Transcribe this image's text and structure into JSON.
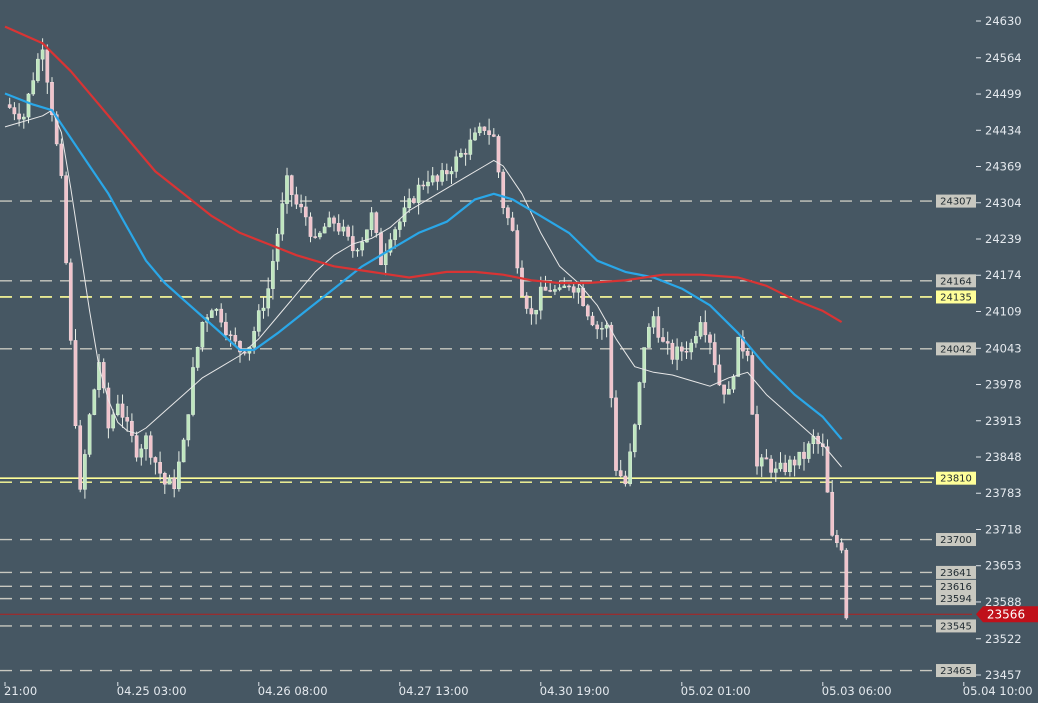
{
  "chart_data": {
    "type": "candlestick",
    "title": "",
    "xlabel": "",
    "ylabel": "",
    "ylim": [
      23440,
      24650
    ],
    "y_ticks": [
      24630,
      24564,
      24499,
      24434,
      24369,
      24304,
      24239,
      24174,
      24109,
      24043,
      23978,
      23913,
      23848,
      23783,
      23718,
      23653,
      23588,
      23522,
      23457
    ],
    "x_ticks": [
      {
        "label": "21:00",
        "index": 0
      },
      {
        "label": "04.25 03:00",
        "index": 24
      },
      {
        "label": "04.26 08:00",
        "index": 54
      },
      {
        "label": "04.27 13:00",
        "index": 84
      },
      {
        "label": "04.30 19:00",
        "index": 114
      },
      {
        "label": "05.02 01:00",
        "index": 144
      },
      {
        "label": "05.03 06:00",
        "index": 174
      },
      {
        "label": "05.04 10:00",
        "index": 204
      }
    ],
    "current_price": 23566,
    "levels": [
      {
        "value": 24307,
        "style": "dashed",
        "color": "#c8c8c0"
      },
      {
        "value": 24164,
        "style": "dashed",
        "color": "#c8c8c0"
      },
      {
        "value": 24135,
        "style": "dashed",
        "color": "#ffff99"
      },
      {
        "value": 24042,
        "style": "dashed",
        "color": "#c8c8c0"
      },
      {
        "value": 23810,
        "style": "solid",
        "color": "#ffff99"
      },
      {
        "value": 23700,
        "style": "dashed",
        "color": "#c8c8c0"
      },
      {
        "value": 23641,
        "style": "dashed",
        "color": "#c8c8c0"
      },
      {
        "value": 23616,
        "style": "dashed",
        "color": "#c8c8c0"
      },
      {
        "value": 23594,
        "style": "dashed",
        "color": "#c8c8c0"
      },
      {
        "value": 23545,
        "style": "dashed",
        "color": "#c8c8c0"
      },
      {
        "value": 23465,
        "style": "dashed",
        "color": "#c8c8c0"
      }
    ],
    "close_path": [
      [
        0,
        24480
      ],
      [
        4,
        24460
      ],
      [
        6,
        24530
      ],
      [
        8,
        24590
      ],
      [
        10,
        24470
      ],
      [
        12,
        24340
      ],
      [
        14,
        24050
      ],
      [
        16,
        23780
      ],
      [
        18,
        23920
      ],
      [
        20,
        24020
      ],
      [
        22,
        23900
      ],
      [
        24,
        23950
      ],
      [
        26,
        23900
      ],
      [
        28,
        23860
      ],
      [
        30,
        23880
      ],
      [
        32,
        23840
      ],
      [
        34,
        23800
      ],
      [
        36,
        23800
      ],
      [
        38,
        23870
      ],
      [
        40,
        24000
      ],
      [
        42,
        24090
      ],
      [
        44,
        24120
      ],
      [
        46,
        24100
      ],
      [
        48,
        24060
      ],
      [
        50,
        24040
      ],
      [
        52,
        24050
      ],
      [
        54,
        24100
      ],
      [
        56,
        24150
      ],
      [
        58,
        24250
      ],
      [
        60,
        24340
      ],
      [
        62,
        24300
      ],
      [
        64,
        24280
      ],
      [
        66,
        24230
      ],
      [
        68,
        24260
      ],
      [
        70,
        24270
      ],
      [
        72,
        24250
      ],
      [
        74,
        24220
      ],
      [
        76,
        24240
      ],
      [
        78,
        24280
      ],
      [
        80,
        24200
      ],
      [
        82,
        24250
      ],
      [
        84,
        24270
      ],
      [
        86,
        24300
      ],
      [
        88,
        24330
      ],
      [
        90,
        24350
      ],
      [
        92,
        24340
      ],
      [
        94,
        24360
      ],
      [
        96,
        24380
      ],
      [
        98,
        24400
      ],
      [
        100,
        24420
      ],
      [
        102,
        24440
      ],
      [
        104,
        24420
      ],
      [
        106,
        24300
      ],
      [
        108,
        24250
      ],
      [
        110,
        24150
      ],
      [
        112,
        24100
      ],
      [
        114,
        24140
      ],
      [
        116,
        24150
      ],
      [
        118,
        24140
      ],
      [
        120,
        24160
      ],
      [
        122,
        24150
      ],
      [
        124,
        24110
      ],
      [
        126,
        24080
      ],
      [
        128,
        24080
      ],
      [
        130,
        23830
      ],
      [
        132,
        23800
      ],
      [
        134,
        23900
      ],
      [
        136,
        24050
      ],
      [
        138,
        24100
      ],
      [
        140,
        24050
      ],
      [
        142,
        24030
      ],
      [
        144,
        24040
      ],
      [
        146,
        24050
      ],
      [
        148,
        24100
      ],
      [
        150,
        24060
      ],
      [
        152,
        23980
      ],
      [
        154,
        23960
      ],
      [
        156,
        24050
      ],
      [
        158,
        24040
      ],
      [
        160,
        23830
      ],
      [
        162,
        23840
      ],
      [
        164,
        23820
      ],
      [
        166,
        23830
      ],
      [
        168,
        23840
      ],
      [
        170,
        23850
      ],
      [
        172,
        23880
      ],
      [
        174,
        23860
      ],
      [
        176,
        23700
      ],
      [
        178,
        23690
      ],
      [
        179,
        23566
      ]
    ],
    "series": [
      {
        "name": "",
        "color": "#e8e8e8",
        "points": [
          [
            0,
            24440
          ],
          [
            4,
            24450
          ],
          [
            8,
            24460
          ],
          [
            10,
            24470
          ],
          [
            12,
            24430
          ],
          [
            14,
            24330
          ],
          [
            16,
            24220
          ],
          [
            18,
            24110
          ],
          [
            20,
            24010
          ],
          [
            22,
            23950
          ],
          [
            24,
            23910
          ],
          [
            26,
            23895
          ],
          [
            28,
            23890
          ],
          [
            30,
            23900
          ],
          [
            34,
            23930
          ],
          [
            38,
            23960
          ],
          [
            42,
            23990
          ],
          [
            46,
            24010
          ],
          [
            50,
            24030
          ],
          [
            54,
            24060
          ],
          [
            58,
            24100
          ],
          [
            62,
            24140
          ],
          [
            66,
            24180
          ],
          [
            70,
            24210
          ],
          [
            74,
            24230
          ],
          [
            78,
            24240
          ],
          [
            82,
            24260
          ],
          [
            86,
            24290
          ],
          [
            90,
            24310
          ],
          [
            94,
            24330
          ],
          [
            98,
            24350
          ],
          [
            102,
            24370
          ],
          [
            104,
            24380
          ],
          [
            106,
            24370
          ],
          [
            110,
            24320
          ],
          [
            114,
            24250
          ],
          [
            118,
            24190
          ],
          [
            122,
            24160
          ],
          [
            126,
            24120
          ],
          [
            130,
            24060
          ],
          [
            134,
            24010
          ],
          [
            138,
            24000
          ],
          [
            142,
            23995
          ],
          [
            146,
            23985
          ],
          [
            150,
            23975
          ],
          [
            154,
            23990
          ],
          [
            158,
            24000
          ],
          [
            162,
            23960
          ],
          [
            166,
            23930
          ],
          [
            170,
            23900
          ],
          [
            174,
            23870
          ],
          [
            178,
            23830
          ]
        ]
      },
      {
        "name": "",
        "color": "#2aa7e8",
        "points": [
          [
            0,
            24500
          ],
          [
            6,
            24480
          ],
          [
            10,
            24470
          ],
          [
            14,
            24420
          ],
          [
            18,
            24370
          ],
          [
            22,
            24320
          ],
          [
            26,
            24260
          ],
          [
            30,
            24200
          ],
          [
            34,
            24160
          ],
          [
            38,
            24130
          ],
          [
            42,
            24100
          ],
          [
            46,
            24070
          ],
          [
            50,
            24040
          ],
          [
            53,
            24040
          ],
          [
            58,
            24070
          ],
          [
            64,
            24110
          ],
          [
            70,
            24150
          ],
          [
            76,
            24190
          ],
          [
            82,
            24220
          ],
          [
            88,
            24250
          ],
          [
            94,
            24270
          ],
          [
            100,
            24310
          ],
          [
            104,
            24320
          ],
          [
            108,
            24310
          ],
          [
            114,
            24280
          ],
          [
            120,
            24250
          ],
          [
            126,
            24200
          ],
          [
            132,
            24180
          ],
          [
            138,
            24170
          ],
          [
            144,
            24150
          ],
          [
            150,
            24120
          ],
          [
            156,
            24070
          ],
          [
            162,
            24010
          ],
          [
            168,
            23960
          ],
          [
            174,
            23920
          ],
          [
            178,
            23880
          ]
        ]
      },
      {
        "name": "",
        "color": "#d93434",
        "points": [
          [
            0,
            24620
          ],
          [
            8,
            24590
          ],
          [
            14,
            24540
          ],
          [
            20,
            24480
          ],
          [
            26,
            24420
          ],
          [
            32,
            24360
          ],
          [
            38,
            24320
          ],
          [
            44,
            24280
          ],
          [
            50,
            24250
          ],
          [
            56,
            24230
          ],
          [
            62,
            24210
          ],
          [
            70,
            24190
          ],
          [
            78,
            24180
          ],
          [
            86,
            24170
          ],
          [
            94,
            24180
          ],
          [
            100,
            24180
          ],
          [
            106,
            24175
          ],
          [
            112,
            24165
          ],
          [
            118,
            24160
          ],
          [
            124,
            24160
          ],
          [
            132,
            24165
          ],
          [
            140,
            24175
          ],
          [
            148,
            24175
          ],
          [
            156,
            24170
          ],
          [
            162,
            24155
          ],
          [
            168,
            24130
          ],
          [
            174,
            24110
          ],
          [
            178,
            24090
          ]
        ]
      }
    ]
  }
}
